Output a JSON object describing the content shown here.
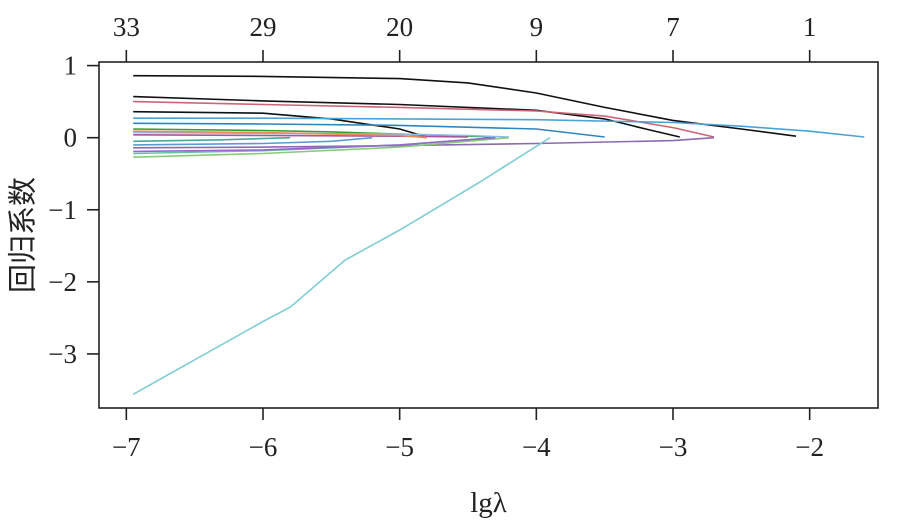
{
  "chart_data": {
    "type": "line",
    "xlabel": "lgλ",
    "ylabel": "回归系数",
    "xlim": [
      -7.2,
      -1.5
    ],
    "ylim": [
      -3.75,
      1.05
    ],
    "x_ticks": [
      -7,
      -6,
      -5,
      -4,
      -3,
      -2
    ],
    "x_tick_labels": [
      "−7",
      "−6",
      "−5",
      "−4",
      "−3",
      "−2"
    ],
    "y_ticks": [
      1,
      0,
      -1,
      -2,
      -3
    ],
    "y_tick_labels": [
      "1",
      "0",
      "−1",
      "−2",
      "−3"
    ],
    "top_axis": {
      "positions": [
        -7,
        -6,
        -5,
        -4,
        -3,
        -2
      ],
      "labels": [
        "33",
        "29",
        "20",
        "9",
        "7",
        "1"
      ]
    },
    "grid": false,
    "legend": "none",
    "series": [
      {
        "color": "#111111",
        "x": [
          -6.95,
          -6,
          -5,
          -4.5,
          -4,
          -3.5,
          -3,
          -2.5,
          -2.1
        ],
        "y": [
          0.86,
          0.85,
          0.82,
          0.76,
          0.62,
          0.42,
          0.24,
          0.12,
          0.02
        ]
      },
      {
        "color": "#111111",
        "x": [
          -6.95,
          -6,
          -5,
          -4,
          -3.5,
          -3.2,
          -2.95
        ],
        "y": [
          0.57,
          0.51,
          0.46,
          0.38,
          0.26,
          0.12,
          0.01
        ]
      },
      {
        "color": "#111111",
        "x": [
          -6.95,
          -6,
          -5.5,
          -5,
          -4.8
        ],
        "y": [
          0.36,
          0.34,
          0.26,
          0.12,
          0.01
        ]
      },
      {
        "color": "#cc6677",
        "x": [
          -6.95,
          -6,
          -5,
          -4,
          -3.5,
          -3,
          -2.7
        ],
        "y": [
          0.5,
          0.46,
          0.42,
          0.37,
          0.3,
          0.14,
          0.01
        ]
      },
      {
        "color": "#4aa3d8",
        "x": [
          -6.95,
          -6,
          -5,
          -4,
          -3,
          -2.5,
          -2,
          -1.6
        ],
        "y": [
          0.27,
          0.27,
          0.26,
          0.25,
          0.21,
          0.16,
          0.09,
          0.01
        ]
      },
      {
        "color": "#2e86c1",
        "x": [
          -6.95,
          -6,
          -5,
          -4,
          -3.5
        ],
        "y": [
          0.2,
          0.19,
          0.17,
          0.12,
          0.01
        ]
      },
      {
        "color": "#33a02c",
        "x": [
          -6.95,
          -6,
          -5.5,
          -5,
          -4.3
        ],
        "y": [
          0.12,
          0.1,
          0.08,
          0.05,
          0.01
        ]
      },
      {
        "color": "#88bbee",
        "x": [
          -6.95,
          -6,
          -5,
          -4.5,
          -4.2
        ],
        "y": [
          0.07,
          0.06,
          0.05,
          0.03,
          0.01
        ]
      },
      {
        "color": "#aa5599",
        "x": [
          -6.95,
          -6,
          -5,
          -4.5
        ],
        "y": [
          0.04,
          0.03,
          0.02,
          0.01
        ]
      },
      {
        "color": "#ee8855",
        "x": [
          -6.95,
          -6,
          -5.5,
          -5,
          -4.8
        ],
        "y": [
          0.09,
          0.07,
          0.05,
          0.03,
          0.0
        ]
      },
      {
        "color": "#8c6bb1",
        "x": [
          -6.95,
          -6,
          -5,
          -4,
          -3,
          -2.7
        ],
        "y": [
          -0.14,
          -0.13,
          -0.11,
          -0.08,
          -0.04,
          0.0
        ]
      },
      {
        "color": "#66c2a5",
        "x": [
          -6.95,
          -6,
          -5,
          -4.3
        ],
        "y": [
          -0.22,
          -0.18,
          -0.1,
          0.0
        ]
      },
      {
        "color": "#88cc77",
        "x": [
          -6.95,
          -6,
          -5,
          -4.2
        ],
        "y": [
          -0.27,
          -0.22,
          -0.13,
          0.0
        ]
      },
      {
        "color": "#9966cc",
        "x": [
          -6.95,
          -6,
          -5,
          -4.3
        ],
        "y": [
          -0.19,
          -0.17,
          -0.1,
          0.0
        ]
      },
      {
        "color": "#5b9bd5",
        "x": [
          -6.95,
          -6,
          -5.5,
          -5.2
        ],
        "y": [
          -0.1,
          -0.08,
          -0.05,
          0.0
        ]
      },
      {
        "color": "#44aa99",
        "x": [
          -6.95,
          -6.3,
          -5.8
        ],
        "y": [
          -0.05,
          -0.03,
          0.0
        ]
      },
      {
        "color": "#7fcdd4",
        "x": [
          -6.95,
          -6,
          -5.8,
          -5.4,
          -5,
          -4.4,
          -3.9
        ],
        "y": [
          -3.56,
          -2.55,
          -2.35,
          -1.7,
          -1.28,
          -0.6,
          0.0
        ]
      }
    ]
  }
}
